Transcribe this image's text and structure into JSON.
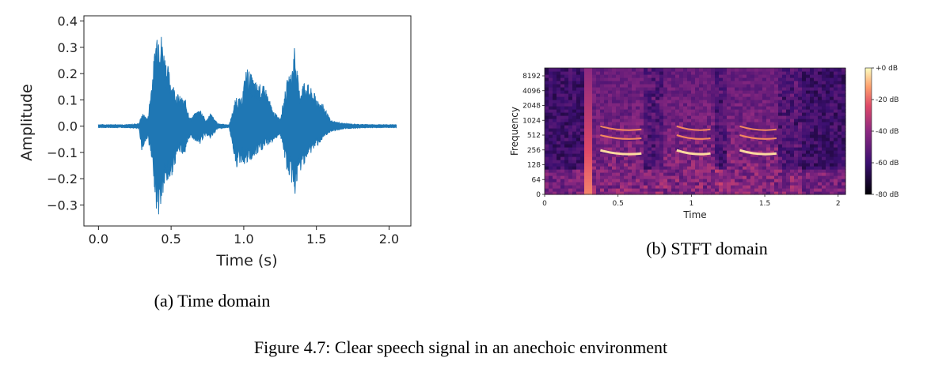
{
  "figure": {
    "caption_a": "(a) Time domain",
    "caption_b": "(b) STFT domain",
    "caption_main": "Figure 4.7: Clear speech signal in an anechoic environment"
  },
  "colors": {
    "waveform": "#1f77b4",
    "axes": "#222222"
  },
  "chart_data": [
    {
      "type": "line",
      "title": "",
      "xlabel": "Time (s)",
      "ylabel": "Amplitude",
      "xlim": [
        -0.1,
        2.15
      ],
      "ylim": [
        -0.38,
        0.42
      ],
      "xticks": [
        0.0,
        0.5,
        1.0,
        1.5,
        2.0
      ],
      "xtick_labels": [
        "0.0",
        "0.5",
        "1.0",
        "1.5",
        "2.0"
      ],
      "yticks": [
        0.4,
        0.3,
        0.2,
        0.1,
        0.0,
        -0.1,
        -0.2,
        -0.3
      ],
      "ytick_labels": [
        "0.4",
        "0.3",
        "0.2",
        "0.1",
        "0.0",
        "−0.1",
        "−0.2",
        "−0.3"
      ],
      "series": [
        {
          "x": [
            0.0,
            0.1,
            0.2,
            0.28,
            0.3,
            0.34,
            0.38,
            0.4,
            0.42,
            0.45,
            0.5,
            0.55,
            0.6,
            0.63,
            0.7,
            0.74,
            0.77,
            0.82,
            0.9,
            0.95,
            0.98,
            1.02,
            1.08,
            1.15,
            1.2,
            1.25,
            1.3,
            1.33,
            1.35,
            1.38,
            1.42,
            1.48,
            1.55,
            1.6,
            1.7,
            1.8,
            1.9,
            2.0,
            2.05
          ],
          "upper": [
            0.006,
            0.006,
            0.006,
            0.01,
            0.05,
            0.03,
            0.25,
            0.38,
            0.4,
            0.3,
            0.18,
            0.12,
            0.1,
            0.03,
            0.07,
            0.02,
            0.05,
            0.01,
            0.005,
            0.12,
            0.1,
            0.23,
            0.17,
            0.15,
            0.06,
            0.03,
            0.18,
            0.21,
            0.33,
            0.14,
            0.18,
            0.13,
            0.08,
            0.02,
            0.01,
            0.007,
            0.006,
            0.006,
            0.006
          ],
          "lower": [
            -0.006,
            -0.006,
            -0.006,
            -0.01,
            -0.1,
            -0.04,
            -0.2,
            -0.33,
            -0.35,
            -0.25,
            -0.2,
            -0.1,
            -0.11,
            -0.04,
            -0.07,
            -0.03,
            -0.05,
            -0.01,
            -0.005,
            -0.16,
            -0.14,
            -0.15,
            -0.12,
            -0.08,
            -0.06,
            -0.03,
            -0.18,
            -0.22,
            -0.27,
            -0.19,
            -0.14,
            -0.09,
            -0.05,
            -0.02,
            -0.01,
            -0.007,
            -0.006,
            -0.006,
            -0.006
          ]
        }
      ]
    },
    {
      "type": "heatmap",
      "title": "",
      "xlabel": "Time",
      "ylabel": "Frequency",
      "xlim": [
        0,
        2.05
      ],
      "xticks": [
        0,
        0.5,
        1,
        1.5,
        2
      ],
      "xtick_labels": [
        "0",
        "0.5",
        "1",
        "1.5",
        "2"
      ],
      "yticks": [
        0,
        64,
        128,
        256,
        512,
        1024,
        2048,
        4096,
        8192
      ],
      "ytick_labels": [
        "0",
        "64",
        "128",
        "256",
        "512",
        "1024",
        "2048",
        "4096",
        "8192"
      ],
      "colorbar": {
        "range": [
          -80,
          0
        ],
        "labels": [
          "+0 dB",
          "-20 dB",
          "-40 dB",
          "-60 dB",
          "-80 dB"
        ]
      },
      "voiced_segments": [
        [
          0.3,
          0.68
        ],
        [
          0.82,
          1.15
        ],
        [
          1.25,
          1.6
        ]
      ]
    }
  ]
}
